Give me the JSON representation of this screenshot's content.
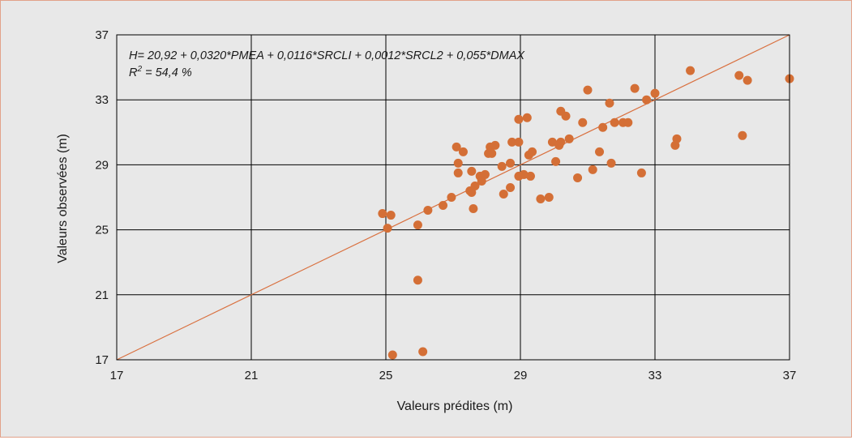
{
  "chart_data": {
    "type": "scatter",
    "xlabel": "Valeurs prédites (m)",
    "ylabel": "Valeurs observées (m)",
    "xlim": [
      17,
      37
    ],
    "ylim": [
      17,
      37
    ],
    "xticks": [
      17,
      21,
      25,
      29,
      33,
      37
    ],
    "yticks": [
      17,
      21,
      25,
      29,
      33,
      37
    ],
    "xtick_labels": [
      "17",
      "21",
      "25",
      "29",
      "33",
      "37"
    ],
    "ytick_labels": [
      "17",
      "21",
      "25",
      "29",
      "33",
      "37"
    ],
    "grid": true,
    "annotations": {
      "equation": "H= 20,92 + 0,0320*PMEA + 0,0116*SRCLI + 0,0012*SRCL2 + 0,055*DMAX",
      "r2_prefix": "R",
      "r2_sup": "2",
      "r2_value": " = 54,4 %"
    },
    "reference_line": {
      "from": [
        17,
        17
      ],
      "to": [
        37,
        37
      ],
      "color": "#d9703f"
    },
    "colors": {
      "points": "#d46f36",
      "line": "#d9703f",
      "grid": "#000000",
      "background": "#e8e8e8"
    },
    "points": [
      [
        24.9,
        26.0
      ],
      [
        25.05,
        25.1
      ],
      [
        25.15,
        25.9
      ],
      [
        25.2,
        17.3
      ],
      [
        25.95,
        21.9
      ],
      [
        25.95,
        25.3
      ],
      [
        26.1,
        17.5
      ],
      [
        26.25,
        26.2
      ],
      [
        26.7,
        26.5
      ],
      [
        26.95,
        27.0
      ],
      [
        27.1,
        30.1
      ],
      [
        27.15,
        29.1
      ],
      [
        27.15,
        28.5
      ],
      [
        27.3,
        29.8
      ],
      [
        27.5,
        27.4
      ],
      [
        27.55,
        28.6
      ],
      [
        27.55,
        27.3
      ],
      [
        27.6,
        26.3
      ],
      [
        27.65,
        27.7
      ],
      [
        27.8,
        28.3
      ],
      [
        27.85,
        28.0
      ],
      [
        27.95,
        28.4
      ],
      [
        28.05,
        29.7
      ],
      [
        28.1,
        30.1
      ],
      [
        28.15,
        29.7
      ],
      [
        28.25,
        30.2
      ],
      [
        28.45,
        28.9
      ],
      [
        28.5,
        27.2
      ],
      [
        28.7,
        29.1
      ],
      [
        28.7,
        27.6
      ],
      [
        28.75,
        30.4
      ],
      [
        28.95,
        28.3
      ],
      [
        28.95,
        31.8
      ],
      [
        28.95,
        30.4
      ],
      [
        29.1,
        28.4
      ],
      [
        29.2,
        31.9
      ],
      [
        29.25,
        29.6
      ],
      [
        29.3,
        28.3
      ],
      [
        29.35,
        29.8
      ],
      [
        29.6,
        26.9
      ],
      [
        29.85,
        27.0
      ],
      [
        29.95,
        30.4
      ],
      [
        30.05,
        29.2
      ],
      [
        30.15,
        30.2
      ],
      [
        30.2,
        30.4
      ],
      [
        30.2,
        32.3
      ],
      [
        30.35,
        32.0
      ],
      [
        30.45,
        30.6
      ],
      [
        30.7,
        28.2
      ],
      [
        30.85,
        31.6
      ],
      [
        31.0,
        33.6
      ],
      [
        31.15,
        28.7
      ],
      [
        31.35,
        29.8
      ],
      [
        31.45,
        31.3
      ],
      [
        31.65,
        32.8
      ],
      [
        31.7,
        29.1
      ],
      [
        31.8,
        31.6
      ],
      [
        32.05,
        31.6
      ],
      [
        32.2,
        31.6
      ],
      [
        32.4,
        33.7
      ],
      [
        32.6,
        28.5
      ],
      [
        32.75,
        33.0
      ],
      [
        33.0,
        33.4
      ],
      [
        33.6,
        30.2
      ],
      [
        33.65,
        30.6
      ],
      [
        34.05,
        34.8
      ],
      [
        35.5,
        34.5
      ],
      [
        35.6,
        30.8
      ],
      [
        35.75,
        34.2
      ],
      [
        37.0,
        34.3
      ]
    ]
  }
}
